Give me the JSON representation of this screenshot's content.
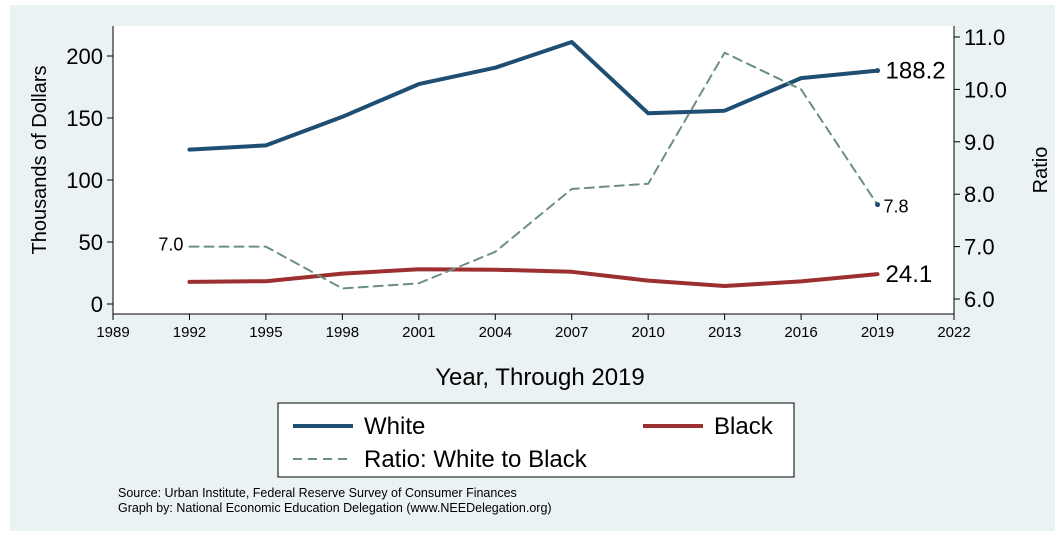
{
  "chart_data": {
    "type": "line",
    "xlabel": "Year, Through 2019",
    "ylabel_left": "Thousands of Dollars",
    "ylabel_right": "Ratio",
    "x_ticks": [
      "1989",
      "1992",
      "1995",
      "1998",
      "2001",
      "2004",
      "2007",
      "2010",
      "2013",
      "2016",
      "2019",
      "2022"
    ],
    "y_left_ticks": [
      "0",
      "50",
      "100",
      "150",
      "200"
    ],
    "y_right_ticks": [
      "6.0",
      "7.0",
      "8.0",
      "9.0",
      "10.0",
      "11.0"
    ],
    "xlim": [
      1989,
      2022
    ],
    "ylim_left": [
      0,
      200
    ],
    "ylim_right": [
      6.0,
      11.0
    ],
    "x": [
      1992,
      1995,
      1998,
      2001,
      2004,
      2007,
      2010,
      2013,
      2016,
      2019
    ],
    "series": [
      {
        "name": "White",
        "axis": "left",
        "color": "#1f4e73",
        "style": "solid",
        "values": [
          124.5,
          127.9,
          151.0,
          177.3,
          190.6,
          211.3,
          153.8,
          155.9,
          182.2,
          188.2
        ]
      },
      {
        "name": "Black",
        "axis": "left",
        "color": "#9c2f2f",
        "style": "solid",
        "values": [
          17.8,
          18.4,
          24.5,
          28.1,
          27.7,
          26.0,
          18.9,
          14.5,
          18.2,
          24.1
        ]
      },
      {
        "name": "Ratio: White to Black",
        "axis": "right",
        "color": "#6b9080",
        "style": "dashed",
        "values": [
          7.0,
          7.0,
          6.2,
          6.3,
          6.9,
          8.1,
          8.2,
          10.7,
          10.0,
          7.8
        ]
      }
    ],
    "annotations": {
      "white_end": "188.2",
      "black_end": "24.1",
      "ratio_end": "7.8",
      "ratio_start": "7.0"
    },
    "legend": {
      "placement": "bottom",
      "items": [
        "White",
        "Black",
        "Ratio: White to Black"
      ]
    },
    "grid": false
  },
  "source": {
    "line1": "Source: Urban Institute, Federal Reserve Survey of Consumer Finances",
    "line2": "Graph by: National Economic Education Delegation (www.NEEDelegation.org)"
  }
}
